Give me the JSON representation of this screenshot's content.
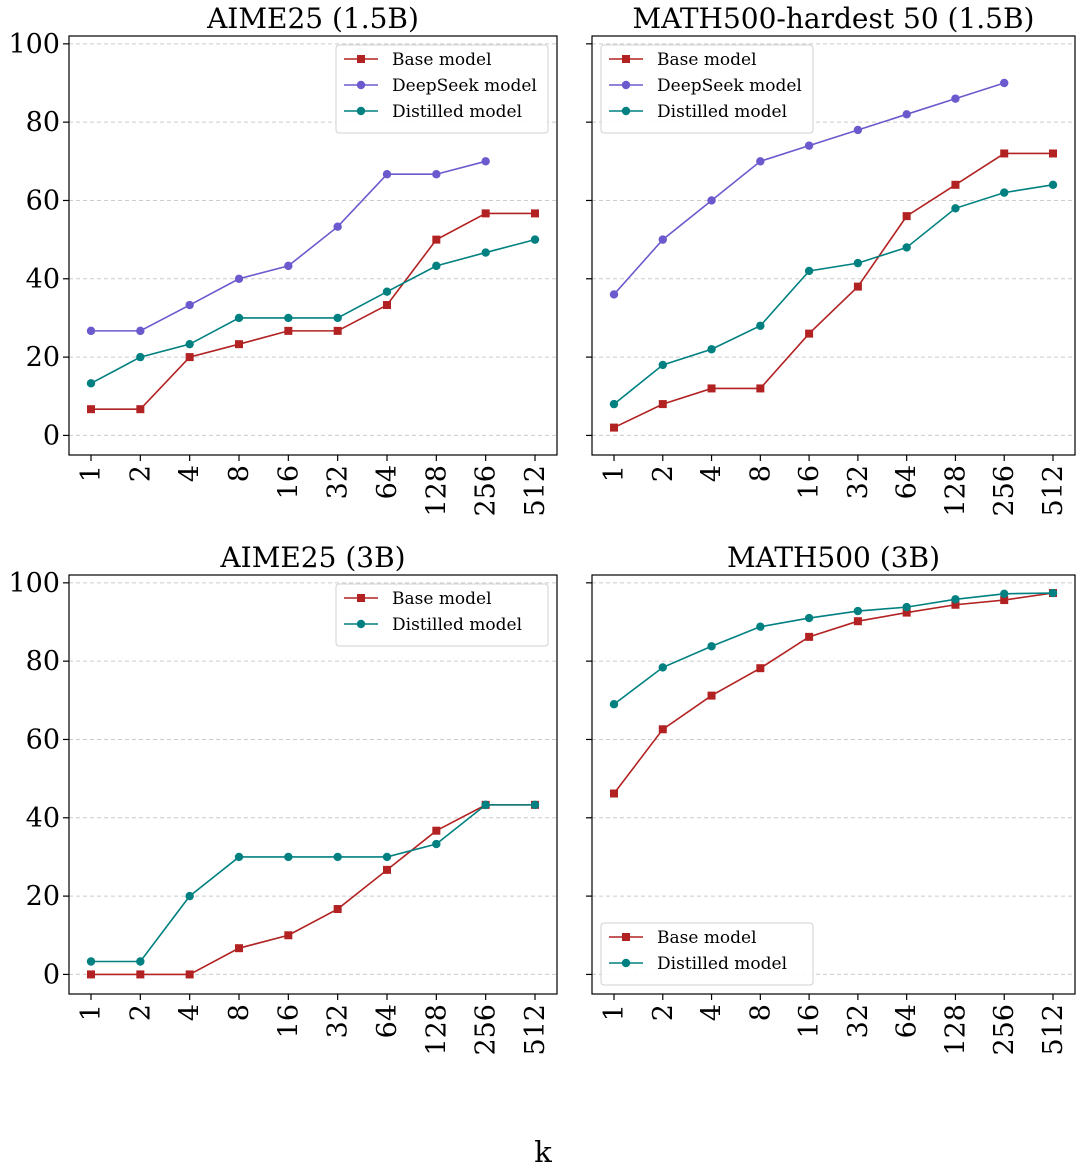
{
  "figure": {
    "xlabel": "k",
    "colors": {
      "Base model": "#b22222",
      "DeepSeek model": "#6a5acd",
      "Distilled model": "#008080"
    },
    "markers": {
      "Base model": "square",
      "DeepSeek model": "circle",
      "Distilled model": "circle"
    }
  },
  "chart_data": [
    {
      "type": "line",
      "title": "AIME25 (1.5B)",
      "categories": [
        "1",
        "2",
        "4",
        "8",
        "16",
        "32",
        "64",
        "128",
        "256",
        "512"
      ],
      "ylim": [
        -5,
        102
      ],
      "yticks": [
        0,
        20,
        40,
        60,
        80,
        100
      ],
      "grid": "y-dashed",
      "legend_loc": "upper right",
      "series": [
        {
          "name": "Base model",
          "values": [
            6.7,
            6.7,
            20.0,
            23.3,
            26.7,
            26.7,
            33.3,
            50.0,
            56.7,
            56.7
          ]
        },
        {
          "name": "DeepSeek model",
          "values": [
            26.7,
            26.7,
            33.3,
            40.0,
            43.3,
            53.3,
            66.7,
            66.7,
            70.0,
            null
          ]
        },
        {
          "name": "Distilled model",
          "values": [
            13.3,
            20.0,
            23.3,
            30.0,
            30.0,
            30.0,
            36.7,
            43.3,
            46.7,
            50.0
          ]
        }
      ]
    },
    {
      "type": "line",
      "title": "MATH500-hardest 50 (1.5B)",
      "categories": [
        "1",
        "2",
        "4",
        "8",
        "16",
        "32",
        "64",
        "128",
        "256",
        "512"
      ],
      "ylim": [
        -5,
        102
      ],
      "yticks": [
        0,
        20,
        40,
        60,
        80,
        100
      ],
      "grid": "y-dashed",
      "legend_loc": "upper left",
      "series": [
        {
          "name": "Base model",
          "values": [
            2,
            8,
            12,
            12,
            26,
            38,
            56,
            64,
            72,
            72
          ]
        },
        {
          "name": "DeepSeek model",
          "values": [
            36,
            50,
            60,
            70,
            74,
            78,
            82,
            86,
            90,
            null
          ]
        },
        {
          "name": "Distilled model",
          "values": [
            8,
            18,
            22,
            28,
            42,
            44,
            48,
            58,
            62,
            64
          ]
        }
      ]
    },
    {
      "type": "line",
      "title": "AIME25 (3B)",
      "categories": [
        "1",
        "2",
        "4",
        "8",
        "16",
        "32",
        "64",
        "128",
        "256",
        "512"
      ],
      "ylim": [
        -5,
        102
      ],
      "yticks": [
        0,
        20,
        40,
        60,
        80,
        100
      ],
      "grid": "y-dashed",
      "legend_loc": "upper right",
      "series": [
        {
          "name": "Base model",
          "values": [
            0,
            0,
            0,
            6.7,
            10.0,
            16.7,
            26.7,
            36.7,
            43.3,
            43.3
          ]
        },
        {
          "name": "Distilled model",
          "values": [
            3.3,
            3.3,
            20.0,
            30.0,
            30.0,
            30.0,
            30.0,
            33.3,
            43.3,
            43.3
          ]
        }
      ]
    },
    {
      "type": "line",
      "title": "MATH500 (3B)",
      "categories": [
        "1",
        "2",
        "4",
        "8",
        "16",
        "32",
        "64",
        "128",
        "256",
        "512"
      ],
      "ylim": [
        -5,
        102
      ],
      "yticks": [
        0,
        20,
        40,
        60,
        80,
        100
      ],
      "grid": "y-dashed",
      "legend_loc": "lower left",
      "series": [
        {
          "name": "Base model",
          "values": [
            46.2,
            62.6,
            71.2,
            78.2,
            86.2,
            90.2,
            92.4,
            94.4,
            95.6,
            97.4
          ]
        },
        {
          "name": "Distilled model",
          "values": [
            69.0,
            78.4,
            83.8,
            88.8,
            91.0,
            92.8,
            93.8,
            95.8,
            97.2,
            97.4
          ]
        }
      ]
    }
  ]
}
